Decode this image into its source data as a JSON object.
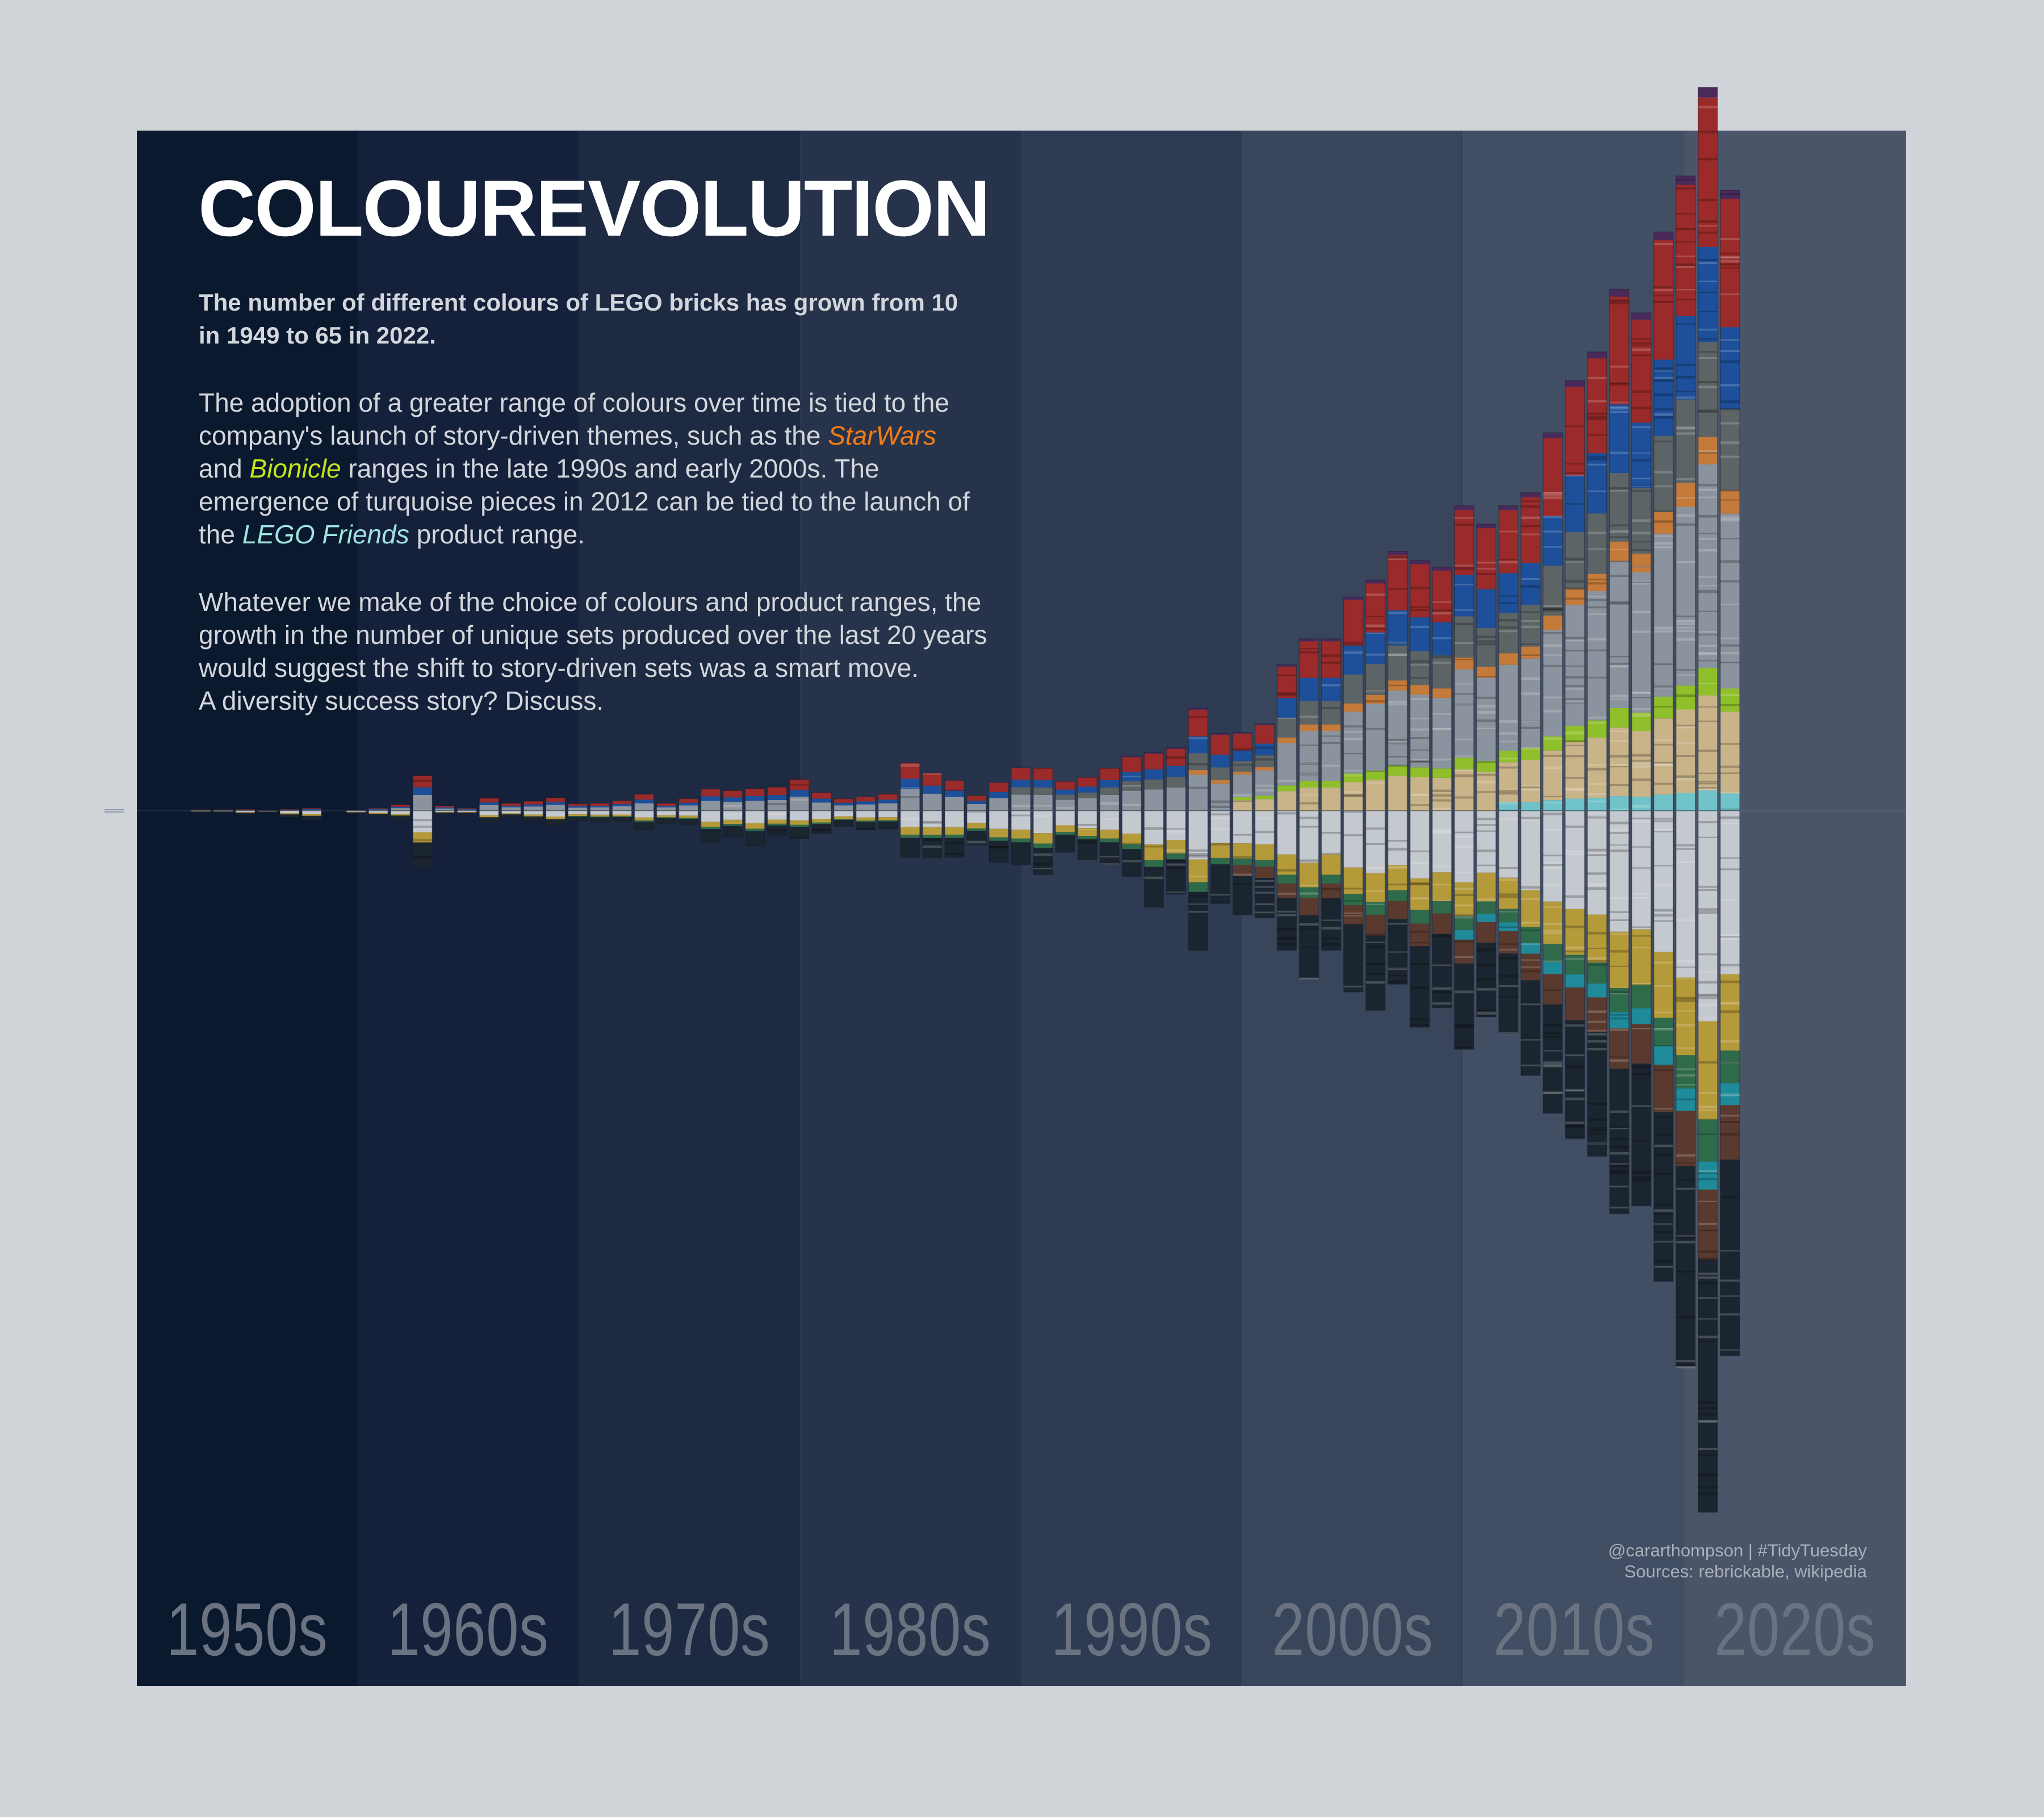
{
  "title": "COLOUREVOLUTION",
  "subtitle_lines": [
    [
      {
        "text": "The number of different colours of LEGO bricks has grown from 10"
      }
    ],
    [
      {
        "text": "in 1949 to 65 in 2022."
      }
    ]
  ],
  "body_paragraph_1": [
    [
      {
        "text": "The adoption of a greater range of colours over time is tied to the"
      }
    ],
    [
      {
        "text": "company's launch of story-driven themes, such as the "
      },
      {
        "text": "StarWars",
        "colour": "#f47c14",
        "italic": true
      }
    ],
    [
      {
        "text": "and "
      },
      {
        "text": "Bionicle",
        "colour": "#c4e41c",
        "italic": true
      },
      {
        "text": " ranges in the late 1990s and early 2000s. The"
      }
    ],
    [
      {
        "text": "emergence of turquoise pieces in 2012 can be tied to the launch of"
      }
    ],
    [
      {
        "text": "the "
      },
      {
        "text": "LEGO Friends",
        "colour": "#9fe3e0",
        "italic": true
      },
      {
        "text": " product range."
      }
    ]
  ],
  "body_paragraph_2": [
    [
      {
        "text": "Whatever we make of the choice of colours and product ranges, the"
      }
    ],
    [
      {
        "text": "growth in the number of unique sets produced over the last 20 years"
      }
    ],
    [
      {
        "text": "would suggest the shift to story-driven sets was a smart move."
      }
    ],
    [
      {
        "text": "A diversity success story? Discuss."
      }
    ]
  ],
  "credits": {
    "line1": "@cararthompson | #TidyTuesday",
    "line2": "Sources: rebrickable, wikipedia"
  },
  "decades": [
    {
      "label": "1950s",
      "bg": "#0b192e"
    },
    {
      "label": "1960s",
      "bg": "#15203a"
    },
    {
      "label": "1970s",
      "bg": "#1e2a42"
    },
    {
      "label": "1980s",
      "bg": "#27334a"
    },
    {
      "label": "1990s",
      "bg": "#2f3b53"
    },
    {
      "label": "2000s",
      "bg": "#38455a"
    },
    {
      "label": "2010s",
      "bg": "#414e63"
    },
    {
      "label": "2020s",
      "bg": "#4a556a"
    }
  ],
  "chart_data": {
    "type": "bar",
    "layout": "diverging stacked bars per year around a central baseline, no printed y axis",
    "x": [
      1953,
      1954,
      1955,
      1956,
      1957,
      1958,
      1959,
      1960,
      1961,
      1962,
      1963,
      1964,
      1965,
      1966,
      1967,
      1968,
      1969,
      1970,
      1971,
      1972,
      1973,
      1974,
      1975,
      1976,
      1977,
      1978,
      1979,
      1980,
      1981,
      1982,
      1983,
      1984,
      1985,
      1986,
      1987,
      1988,
      1989,
      1990,
      1991,
      1992,
      1993,
      1994,
      1995,
      1996,
      1997,
      1998,
      1999,
      2000,
      2001,
      2002,
      2003,
      2004,
      2005,
      2006,
      2007,
      2008,
      2009,
      2010,
      2011,
      2012,
      2013,
      2014,
      2015,
      2016,
      2017,
      2018,
      2019,
      2020,
      2021,
      2022
    ],
    "above": [
      1,
      1,
      1.2,
      0.5,
      1.2,
      2,
      0,
      0.8,
      2,
      4.7,
      27,
      3.9,
      2,
      9.7,
      5.8,
      7.4,
      10,
      5.4,
      5.8,
      7.8,
      12.8,
      5.8,
      9.3,
      16.7,
      15.5,
      17,
      18.2,
      24,
      14,
      9.3,
      10.9,
      12.8,
      36.9,
      29,
      23.3,
      11.6,
      21.7,
      33,
      32.6,
      22.5,
      25.6,
      32.6,
      41.9,
      44.6,
      48.5,
      78.8,
      59.4,
      60,
      66.7,
      112,
      132,
      132,
      164,
      177,
      199,
      192,
      187,
      234,
      220,
      234,
      244,
      290,
      330,
      352,
      400,
      382,
      444,
      487,
      555,
      476
    ],
    "below": [
      1,
      1,
      2.7,
      1,
      5,
      7,
      0,
      2,
      4,
      6.6,
      44,
      2.3,
      2.3,
      9,
      5,
      7.8,
      11.6,
      7.8,
      8.5,
      8.1,
      14.4,
      9.7,
      10.5,
      24,
      19.8,
      27,
      19.4,
      21,
      17.5,
      12,
      14.7,
      14,
      35.7,
      36,
      35.7,
      26.4,
      39.6,
      41.5,
      49,
      31.8,
      37.6,
      41.5,
      50.4,
      74,
      64,
      107,
      70.6,
      79.8,
      82.2,
      107,
      128,
      107,
      139,
      153,
      133,
      166,
      151,
      183,
      158,
      171,
      203,
      232,
      251,
      265,
      309,
      303,
      361,
      426,
      538,
      418
    ],
    "above_bands": [
      {
        "colour": "#6fc3c9",
        "share": 3,
        "from": 2012
      },
      {
        "colour": "#c9b48a",
        "share": 14,
        "from": 2000
      },
      {
        "colour": "#8fbf2a",
        "share": 4,
        "from": 2000
      },
      {
        "colour": "#8b949e",
        "share": 30,
        "from": 1949
      },
      {
        "colour": "#c47a3a",
        "share": 4,
        "from": 1998
      },
      {
        "colour": "#5d6466",
        "share": 14,
        "from": 1990
      },
      {
        "colour": "#1d4f9a",
        "share": 14,
        "from": 1949
      },
      {
        "colour": "#9b2a2a",
        "share": 22,
        "from": 1949
      },
      {
        "colour": "#4a2a5a",
        "share": 1.5,
        "from": 1995
      }
    ],
    "below_bands": [
      {
        "colour": "#c4c8cf",
        "share": 30,
        "from": 1949
      },
      {
        "colour": "#b59a3a",
        "share": 14,
        "from": 1949
      },
      {
        "colour": "#2f6a4a",
        "share": 6,
        "from": 1970
      },
      {
        "colour": "#1f8a99",
        "share": 4,
        "from": 2010
      },
      {
        "colour": "#5a3a2e",
        "share": 10,
        "from": 2000
      },
      {
        "colour": "#1b2530",
        "share": 36,
        "from": 1949
      }
    ],
    "grid": false,
    "legend": "none"
  }
}
